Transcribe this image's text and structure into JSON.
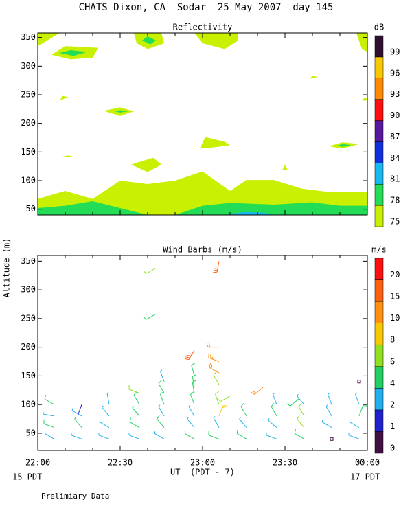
{
  "title": "CHATS Dixon, CA  Sodar  25 May 2007  day 145",
  "y_label": "Altitude (m)",
  "x_label": "UT  (PDT - 7)",
  "x_start_note": "15 PDT",
  "x_end_note": "17 PDT",
  "footnote": "Prelimiary Data",
  "chart_data": [
    {
      "type": "contour",
      "title": "Reflectivity",
      "xlim": [
        0,
        120
      ],
      "xticks": [
        {
          "value": 0,
          "label": "22:00"
        },
        {
          "value": 30,
          "label": "22:30"
        },
        {
          "value": 60,
          "label": "23:00"
        },
        {
          "value": 90,
          "label": "23:30"
        },
        {
          "value": 120,
          "label": "00:00"
        }
      ],
      "ylim": [
        40,
        358
      ],
      "yticks": [
        50,
        100,
        150,
        200,
        250,
        300,
        350
      ],
      "colorbar": {
        "label": "dB",
        "levels": [
          75,
          78,
          81,
          84,
          87,
          90,
          93,
          96,
          99
        ],
        "colors": [
          "#c8f000",
          "#22dd55",
          "#18b8f0",
          "#1030e0",
          "#5818a0",
          "#ff1010",
          "#ff8c00",
          "#f8c800",
          "#301030"
        ]
      },
      "regions": [
        {
          "level": 75,
          "points": [
            [
              0,
              40
            ],
            [
              0,
              68
            ],
            [
              10,
              82
            ],
            [
              20,
              68
            ],
            [
              30,
              100
            ],
            [
              40,
              94
            ],
            [
              50,
              100
            ],
            [
              60,
              116
            ],
            [
              70,
              82
            ],
            [
              76,
              101
            ],
            [
              86,
              101
            ],
            [
              96,
              86
            ],
            [
              106,
              80
            ],
            [
              120,
              80
            ],
            [
              120,
              40
            ]
          ]
        },
        {
          "level": 78,
          "points": [
            [
              0,
              40
            ],
            [
              0,
              52
            ],
            [
              10,
              56
            ],
            [
              20,
              64
            ],
            [
              30,
              52
            ],
            [
              40,
              40
            ],
            [
              50,
              40
            ],
            [
              60,
              56
            ],
            [
              70,
              61
            ],
            [
              86,
              58
            ],
            [
              100,
              62
            ],
            [
              110,
              56
            ],
            [
              120,
              56
            ],
            [
              120,
              40
            ]
          ]
        },
        {
          "level": 81,
          "points": [
            [
              68,
              40
            ],
            [
              75,
              45
            ],
            [
              82,
              44
            ],
            [
              86,
              40
            ]
          ]
        },
        {
          "level": 75,
          "points": [
            [
              0,
              358
            ],
            [
              8,
              358
            ],
            [
              0,
              335
            ]
          ]
        },
        {
          "level": 75,
          "points": [
            [
              5,
              320
            ],
            [
              10,
              335
            ],
            [
              22,
              332
            ],
            [
              20,
              315
            ],
            [
              12,
              312
            ]
          ]
        },
        {
          "level": 78,
          "points": [
            [
              8,
              323
            ],
            [
              12,
              328
            ],
            [
              18,
              325
            ],
            [
              13,
              318
            ]
          ]
        },
        {
          "level": 75,
          "points": [
            [
              35,
              358
            ],
            [
              36,
              340
            ],
            [
              40,
              330
            ],
            [
              46,
              340
            ],
            [
              45,
              358
            ]
          ]
        },
        {
          "level": 78,
          "points": [
            [
              38,
              345
            ],
            [
              41,
              338
            ],
            [
              43,
              345
            ],
            [
              40,
              352
            ]
          ]
        },
        {
          "level": 75,
          "points": [
            [
              57,
              358
            ],
            [
              60,
              340
            ],
            [
              68,
              330
            ],
            [
              73,
              345
            ],
            [
              73,
              358
            ]
          ]
        },
        {
          "level": 75,
          "points": [
            [
              116,
              358
            ],
            [
              118,
              330
            ],
            [
              120,
              325
            ],
            [
              120,
              358
            ]
          ]
        },
        {
          "level": 75,
          "points": [
            [
              8,
              240
            ],
            [
              9,
              248
            ],
            [
              11,
              246
            ]
          ]
        },
        {
          "level": 75,
          "points": [
            [
              24,
              222
            ],
            [
              30,
              228
            ],
            [
              35,
              221
            ],
            [
              30,
              213
            ]
          ]
        },
        {
          "level": 78,
          "points": [
            [
              28,
              221
            ],
            [
              30,
              223
            ],
            [
              33,
              221
            ],
            [
              30,
              219
            ]
          ]
        },
        {
          "level": 75,
          "points": [
            [
              9,
              142
            ],
            [
              11,
              144
            ],
            [
              13,
              142
            ]
          ]
        },
        {
          "level": 75,
          "points": [
            [
              59,
              156
            ],
            [
              61,
              176
            ],
            [
              68,
              168
            ],
            [
              70,
              162
            ],
            [
              64,
              158
            ]
          ]
        },
        {
          "level": 75,
          "points": [
            [
              34,
              128
            ],
            [
              42,
              140
            ],
            [
              45,
              128
            ],
            [
              40,
              115
            ]
          ]
        },
        {
          "level": 75,
          "points": [
            [
              89,
              118
            ],
            [
              90,
              128
            ],
            [
              91,
              118
            ]
          ]
        },
        {
          "level": 75,
          "points": [
            [
              99,
              278
            ],
            [
              100,
              283
            ],
            [
              102,
              281
            ]
          ]
        },
        {
          "level": 75,
          "points": [
            [
              106,
              160
            ],
            [
              111,
              167
            ],
            [
              117,
              164
            ],
            [
              111,
              156
            ]
          ]
        },
        {
          "level": 78,
          "points": [
            [
              109,
              161
            ],
            [
              111,
              164
            ],
            [
              114,
              162
            ],
            [
              111,
              159
            ]
          ]
        },
        {
          "level": 75,
          "points": [
            [
              118,
              240
            ],
            [
              119,
              245
            ],
            [
              120,
              243
            ],
            [
              120,
              240
            ]
          ]
        }
      ]
    },
    {
      "type": "barbs",
      "title": "Wind Barbs (m/s)",
      "xlim": [
        0,
        120
      ],
      "xticks": [
        {
          "value": 0,
          "label": "22:00"
        },
        {
          "value": 30,
          "label": "22:30"
        },
        {
          "value": 60,
          "label": "23:00"
        },
        {
          "value": 90,
          "label": "23:30"
        },
        {
          "value": 120,
          "label": "00:00"
        }
      ],
      "ylim": [
        20,
        360
      ],
      "yticks": [
        50,
        100,
        150,
        200,
        250,
        300,
        350
      ],
      "colorbar": {
        "label": "m/s",
        "levels": [
          0,
          1,
          2,
          4,
          6,
          8,
          10,
          15,
          20
        ],
        "colors": [
          "#401040",
          "#2020d0",
          "#20b0f0",
          "#20d060",
          "#90e020",
          "#f8c800",
          "#ff9010",
          "#ff6010",
          "#ff1010"
        ]
      },
      "barbs": {
        "time": [
          6,
          6,
          6,
          6,
          16,
          16,
          16,
          16,
          26,
          26,
          26,
          26,
          37,
          37,
          37,
          37,
          37,
          46,
          46,
          46,
          46,
          46,
          46,
          57,
          57,
          57,
          57,
          57,
          57,
          66,
          66,
          66,
          66,
          76,
          76,
          76,
          87,
          87,
          87,
          87,
          97,
          97,
          97,
          97,
          107,
          107,
          107,
          107,
          117,
          117,
          117,
          117,
          117,
          43,
          43,
          57,
          66,
          66,
          66,
          66,
          57,
          66,
          70,
          82,
          95
        ],
        "altitude": [
          40,
          60,
          80,
          100,
          40,
          60,
          80,
          100,
          40,
          60,
          80,
          100,
          40,
          60,
          80,
          100,
          120,
          40,
          60,
          80,
          100,
          120,
          140,
          40,
          60,
          80,
          100,
          120,
          150,
          40,
          60,
          80,
          100,
          40,
          60,
          80,
          40,
          60,
          80,
          100,
          40,
          60,
          80,
          100,
          40,
          60,
          80,
          100,
          40,
          60,
          80,
          100,
          140,
          338,
          258,
          195,
          350,
          200,
          175,
          155,
          130,
          135,
          115,
          130,
          110
        ],
        "speed": [
          3,
          5,
          3,
          5,
          3,
          4.5,
          2.5,
          1.5,
          3,
          3,
          3,
          3,
          3.5,
          5,
          4.5,
          5,
          6.5,
          3,
          5,
          3,
          5,
          5,
          3,
          4.5,
          3,
          3,
          5,
          5,
          5,
          5,
          3,
          9,
          7,
          5,
          3,
          5,
          3,
          3,
          5,
          3,
          5,
          7,
          6.5,
          3,
          0.5,
          3,
          3,
          3,
          3,
          3,
          5,
          3,
          0.5,
          6,
          5,
          18,
          18,
          12,
          14,
          11,
          5,
          7,
          6,
          10,
          5
        ],
        "direction": [
          300,
          290,
          280,
          300,
          290,
          320,
          300,
          200,
          290,
          300,
          320,
          350,
          290,
          300,
          320,
          330,
          290,
          300,
          320,
          330,
          340,
          330,
          340,
          300,
          320,
          330,
          340,
          350,
          345,
          290,
          330,
          20,
          340,
          300,
          320,
          330,
          290,
          310,
          330,
          340,
          300,
          320,
          330,
          320,
          0,
          300,
          330,
          340,
          290,
          300,
          20,
          340,
          0,
          240,
          240,
          210,
          190,
          270,
          290,
          300,
          350,
          330,
          240,
          230,
          230
        ]
      }
    }
  ]
}
